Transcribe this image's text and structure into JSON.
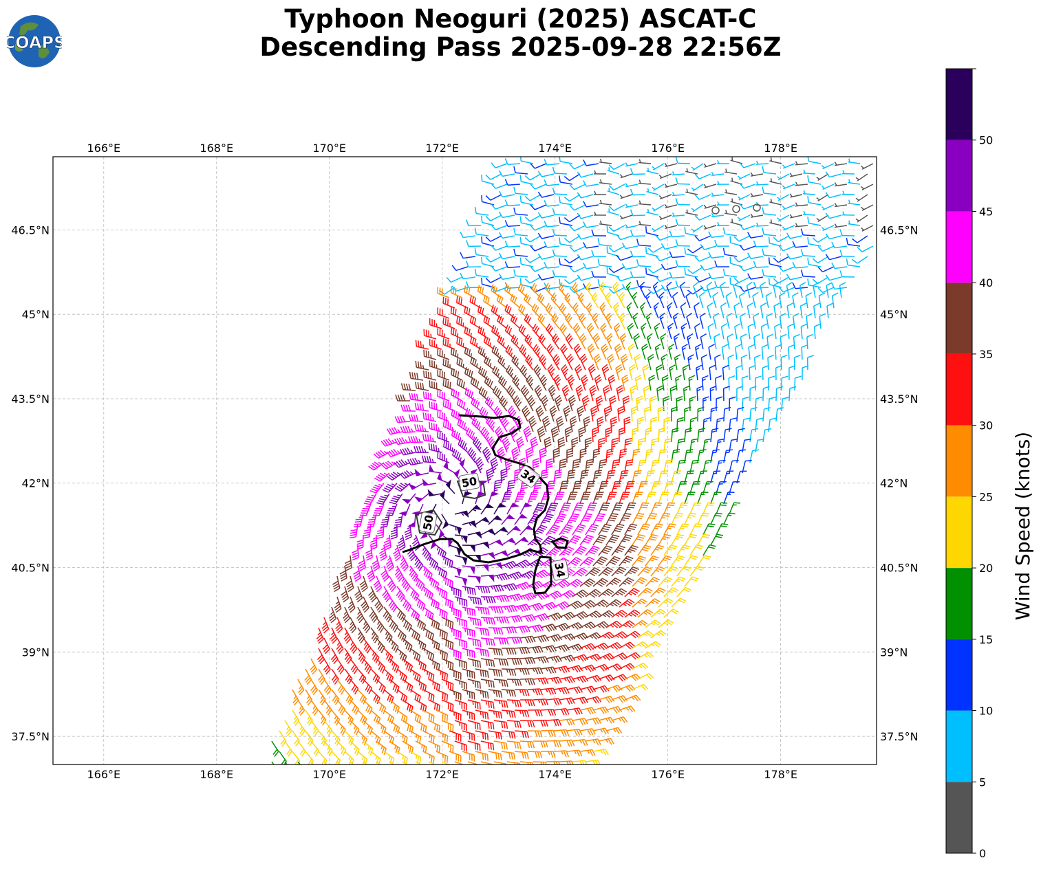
{
  "header": {
    "title_line1": "Typhoon Neoguri (2025) ASCAT-C",
    "title_line2": "Descending Pass 2025-09-28 22:56Z",
    "logo_text": "COAPS"
  },
  "map": {
    "lon_labels": [
      "166°E",
      "168°E",
      "170°E",
      "172°E",
      "174°E",
      "176°E",
      "178°E"
    ],
    "lat_labels": [
      "46.5°N",
      "45°N",
      "43.5°N",
      "42°N",
      "40.5°N",
      "39°N",
      "37.5°N"
    ],
    "lon_range": [
      165.1,
      179.7
    ],
    "lat_range": [
      37.0,
      47.8
    ],
    "contours": [
      {
        "label": "34",
        "value_knots": 34
      },
      {
        "label": "34",
        "value_knots": 34
      },
      {
        "label": "50",
        "value_knots": 50
      },
      {
        "label": "50",
        "value_knots": 50
      }
    ]
  },
  "colorbar": {
    "label": "Wind Speed (knots)",
    "ticks": [
      "0",
      "5",
      "10",
      "15",
      "20",
      "25",
      "30",
      "35",
      "40",
      "45",
      "50"
    ],
    "bins": [
      {
        "min": 0,
        "max": 5,
        "color": "#555555"
      },
      {
        "min": 5,
        "max": 10,
        "color": "#00bfff"
      },
      {
        "min": 10,
        "max": 15,
        "color": "#0033ff"
      },
      {
        "min": 15,
        "max": 20,
        "color": "#009000"
      },
      {
        "min": 20,
        "max": 25,
        "color": "#ffd700"
      },
      {
        "min": 25,
        "max": 30,
        "color": "#ff8c00"
      },
      {
        "min": 30,
        "max": 35,
        "color": "#ff1010"
      },
      {
        "min": 35,
        "max": 40,
        "color": "#7b3a2a"
      },
      {
        "min": 40,
        "max": 45,
        "color": "#ff00ff"
      },
      {
        "min": 45,
        "max": 50,
        "color": "#8a00c0"
      },
      {
        "min": 50,
        "max": 55,
        "color": "#2a005c"
      }
    ]
  }
}
